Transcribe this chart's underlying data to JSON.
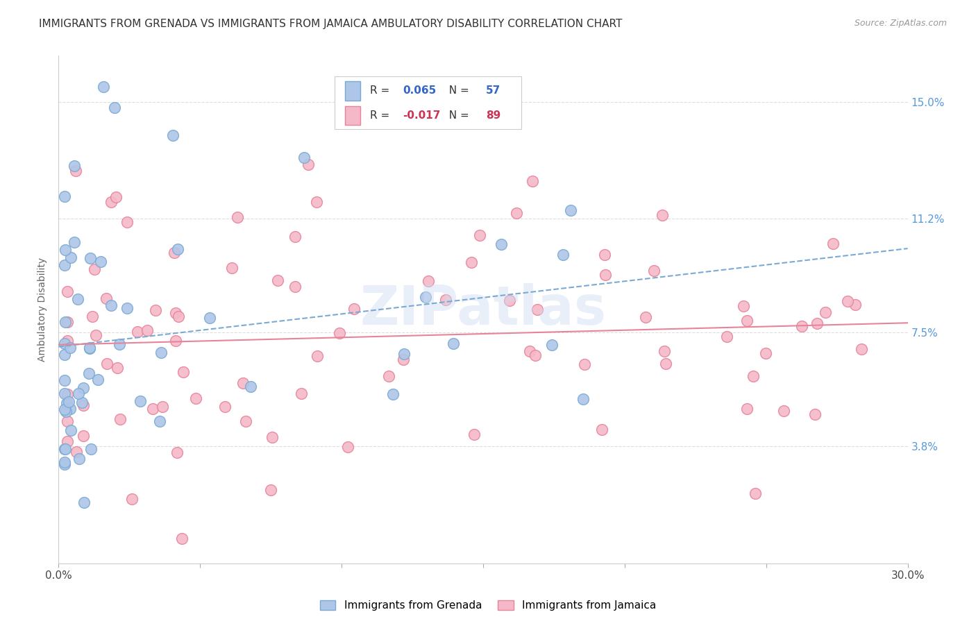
{
  "title": "IMMIGRANTS FROM GRENADA VS IMMIGRANTS FROM JAMAICA AMBULATORY DISABILITY CORRELATION CHART",
  "source": "Source: ZipAtlas.com",
  "ylabel": "Ambulatory Disability",
  "xlim": [
    0.0,
    0.3
  ],
  "ylim": [
    0.0,
    0.165
  ],
  "yticks": [
    0.038,
    0.075,
    0.112,
    0.15
  ],
  "ytick_labels": [
    "3.8%",
    "7.5%",
    "11.2%",
    "15.0%"
  ],
  "xticks": [
    0.0,
    0.05,
    0.1,
    0.15,
    0.2,
    0.25,
    0.3
  ],
  "xtick_labels": [
    "0.0%",
    "",
    "",
    "",
    "",
    "",
    "30.0%"
  ],
  "grenada_R": 0.065,
  "grenada_N": 57,
  "jamaica_R": -0.017,
  "jamaica_N": 89,
  "grenada_color": "#aec6e8",
  "jamaica_color": "#f5b8c8",
  "grenada_edge": "#7aaad4",
  "jamaica_edge": "#e8849a",
  "trend_grenada_color": "#7aaad4",
  "trend_jamaica_color": "#e8849a",
  "background_color": "#ffffff",
  "grid_color": "#dddddd",
  "title_fontsize": 11,
  "axis_label_fontsize": 10,
  "tick_fontsize": 11,
  "watermark_text": "ZIPatlas",
  "watermark_color": "#d0dcf0",
  "watermark_alpha": 0.45,
  "grenada_seed": 42,
  "jamaica_seed": 99
}
